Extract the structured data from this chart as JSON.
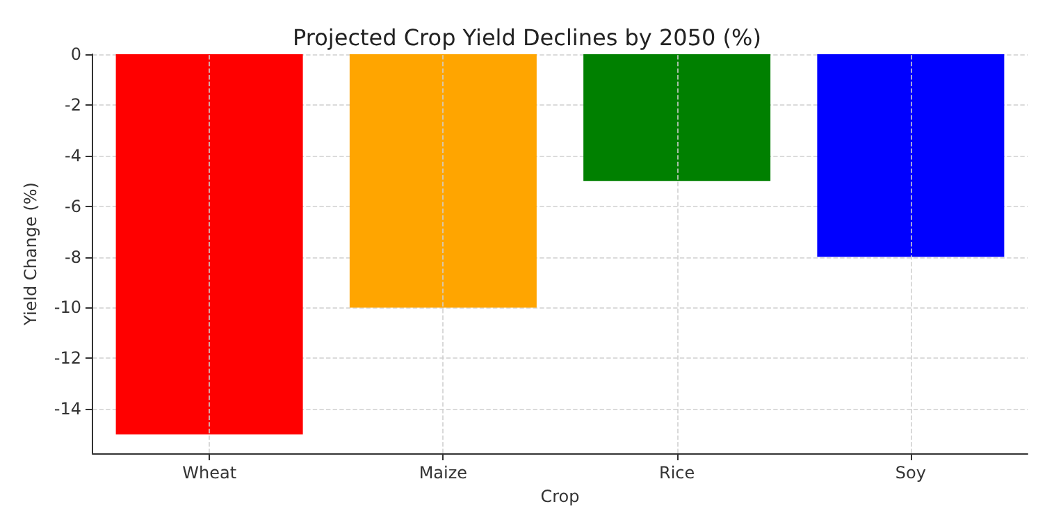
{
  "chart_data": {
    "type": "bar",
    "title": "Projected Crop Yield Declines by 2050 (%)",
    "xlabel": "Crop",
    "ylabel": "Yield Change (%)",
    "categories": [
      "Wheat",
      "Maize",
      "Rice",
      "Soy"
    ],
    "values": [
      -15,
      -10,
      -5,
      -8
    ],
    "colors": [
      "#ff0000",
      "#ffa500",
      "#008000",
      "#0000ff"
    ],
    "ylim": [
      -15.75,
      0
    ],
    "yticks": [
      0,
      -2,
      -4,
      -6,
      -8,
      -10,
      -12,
      -14
    ],
    "grid": true
  }
}
